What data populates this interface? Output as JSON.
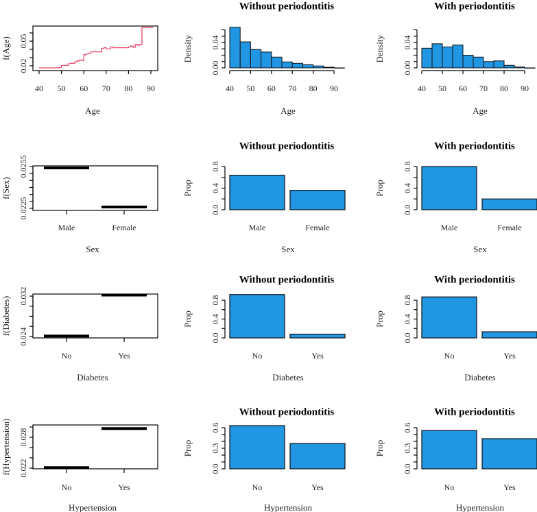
{
  "colors": {
    "bar_fill": "#2196E3",
    "line": "#E8486A",
    "axis": "#000000"
  },
  "chart_data": [
    {
      "type": "line",
      "title": "",
      "xlabel": "Age",
      "ylabel": "f(Age)",
      "x": [
        40,
        48,
        49,
        50,
        53,
        54,
        56,
        57,
        58,
        59,
        60,
        61,
        62,
        63,
        64,
        67,
        68,
        69,
        70,
        72,
        73,
        80,
        81,
        82,
        83,
        84,
        85,
        86,
        91
      ],
      "y": [
        0.0175,
        0.0175,
        0.018,
        0.0205,
        0.0225,
        0.023,
        0.025,
        0.026,
        0.027,
        0.0265,
        0.0335,
        0.0345,
        0.035,
        0.037,
        0.037,
        0.037,
        0.041,
        0.042,
        0.0405,
        0.043,
        0.042,
        0.043,
        0.044,
        0.0425,
        0.046,
        0.045,
        0.046,
        0.0667,
        0.0667
      ],
      "xticks": [
        40,
        50,
        60,
        70,
        80,
        90
      ],
      "xtick_labels": [
        "40",
        "50",
        "60",
        "70",
        "80",
        "90"
      ],
      "yticks": [
        0.02,
        0.03,
        0.04,
        0.05,
        0.06
      ],
      "ytick_labels": [
        "0.02",
        "",
        "",
        "0.05",
        ""
      ]
    },
    {
      "type": "bar",
      "title": "Without periodontitis",
      "xlabel": "Age",
      "ylabel": "Density",
      "histogram": true,
      "bin_edges": [
        40,
        45,
        50,
        55,
        60,
        65,
        70,
        75,
        80,
        85,
        90,
        95
      ],
      "values": [
        0.064,
        0.041,
        0.029,
        0.025,
        0.017,
        0.0094,
        0.0072,
        0.005,
        0.003,
        0.001,
        0.0
      ],
      "xticks": [
        40,
        50,
        60,
        70,
        80,
        90
      ],
      "xtick_labels": [
        "40",
        "50",
        "60",
        "70",
        "80",
        "90"
      ],
      "yticks": [
        0,
        0.01,
        0.02,
        0.03,
        0.04,
        0.05,
        0.06
      ],
      "ytick_labels": [
        "0.00",
        "",
        "",
        "",
        "0.04",
        "",
        ""
      ]
    },
    {
      "type": "bar",
      "title": "With periodontitis",
      "xlabel": "Age",
      "ylabel": "Density",
      "histogram": true,
      "bin_edges": [
        40,
        45,
        50,
        55,
        60,
        65,
        70,
        75,
        80,
        85,
        90,
        95
      ],
      "values": [
        0.031,
        0.038,
        0.033,
        0.036,
        0.02,
        0.017,
        0.01,
        0.011,
        0.004,
        0.0014,
        0.0
      ],
      "xticks": [
        40,
        50,
        60,
        70,
        80,
        90
      ],
      "xtick_labels": [
        "40",
        "50",
        "60",
        "70",
        "80",
        "90"
      ],
      "yticks": [
        0,
        0.01,
        0.02,
        0.03,
        0.04,
        0.05,
        0.06
      ],
      "ytick_labels": [
        "0.00",
        "",
        "",
        "",
        "0.04",
        "",
        ""
      ]
    },
    {
      "type": "bar",
      "title": "",
      "xlabel": "Sex",
      "ylabel": "f(Sex)",
      "effect": true,
      "categories": [
        "Male",
        "Female"
      ],
      "values": [
        0.0254,
        0.0226
      ],
      "yticks": [
        0.0225,
        0.023,
        0.0235,
        0.024,
        0.0245,
        0.025,
        0.0255
      ],
      "ytick_labels": [
        "0.0225",
        "",
        "",
        "",
        "",
        "",
        "0.0255"
      ]
    },
    {
      "type": "bar",
      "title": "Without periodontitis",
      "xlabel": "Sex",
      "ylabel": "Prop",
      "categories": [
        "Male",
        "Female"
      ],
      "values": [
        0.64,
        0.36
      ],
      "yticks": [
        0,
        0.2,
        0.4,
        0.6,
        0.8
      ],
      "ytick_labels": [
        "0.0",
        "",
        "0.4",
        "",
        "0.8"
      ]
    },
    {
      "type": "bar",
      "title": "With periodontitis",
      "xlabel": "Sex",
      "ylabel": "Prop",
      "categories": [
        "Male",
        "Female"
      ],
      "values": [
        0.8,
        0.2
      ],
      "yticks": [
        0,
        0.2,
        0.4,
        0.6,
        0.8
      ],
      "ytick_labels": [
        "0.0",
        "",
        "0.4",
        "",
        "0.8"
      ]
    },
    {
      "type": "bar",
      "title": "",
      "xlabel": "Diabetes",
      "ylabel": "f(Diabetes)",
      "effect": true,
      "categories": [
        "No",
        "Yes"
      ],
      "values": [
        0.0241,
        0.0322
      ],
      "yticks": [
        0.024,
        0.026,
        0.028,
        0.03,
        0.032
      ],
      "ytick_labels": [
        "0.024",
        "",
        "",
        "",
        "0.032"
      ]
    },
    {
      "type": "bar",
      "title": "Without periodontitis",
      "xlabel": "Diabetes",
      "ylabel": "Prop",
      "categories": [
        "No",
        "Yes"
      ],
      "values": [
        0.92,
        0.08
      ],
      "yticks": [
        0,
        0.2,
        0.4,
        0.6,
        0.8
      ],
      "ytick_labels": [
        "0.0",
        "",
        "0.4",
        "",
        "0.8"
      ]
    },
    {
      "type": "bar",
      "title": "With periodontitis",
      "xlabel": "Diabetes",
      "ylabel": "Prop",
      "categories": [
        "No",
        "Yes"
      ],
      "values": [
        0.87,
        0.13
      ],
      "yticks": [
        0,
        0.2,
        0.4,
        0.6,
        0.8
      ],
      "ytick_labels": [
        "0.0",
        "",
        "0.4",
        "",
        "0.8"
      ]
    },
    {
      "type": "bar",
      "title": "",
      "xlabel": "Hypertension",
      "ylabel": "f(Hypertension)",
      "effect": true,
      "categories": [
        "No",
        "Yes"
      ],
      "values": [
        0.0221,
        0.0297
      ],
      "yticks": [
        0.022,
        0.024,
        0.026,
        0.028,
        0.03
      ],
      "ytick_labels": [
        "0.022",
        "",
        "",
        "0.028",
        ""
      ]
    },
    {
      "type": "bar",
      "title": "Without periodontitis",
      "xlabel": "Hypertension",
      "ylabel": "Prop",
      "categories": [
        "No",
        "Yes"
      ],
      "values": [
        0.63,
        0.37
      ],
      "yticks": [
        0,
        0.1,
        0.2,
        0.3,
        0.4,
        0.5,
        0.6
      ],
      "ytick_labels": [
        "0.0",
        "",
        "",
        "0.3",
        "",
        "",
        "0.6"
      ]
    },
    {
      "type": "bar",
      "title": "With periodontitis",
      "xlabel": "Hypertension",
      "ylabel": "Prop",
      "categories": [
        "No",
        "Yes"
      ],
      "values": [
        0.56,
        0.44
      ],
      "yticks": [
        0,
        0.1,
        0.2,
        0.3,
        0.4,
        0.5,
        0.6
      ],
      "ytick_labels": [
        "0.0",
        "",
        "",
        "0.3",
        "",
        "",
        "0.6"
      ]
    }
  ]
}
